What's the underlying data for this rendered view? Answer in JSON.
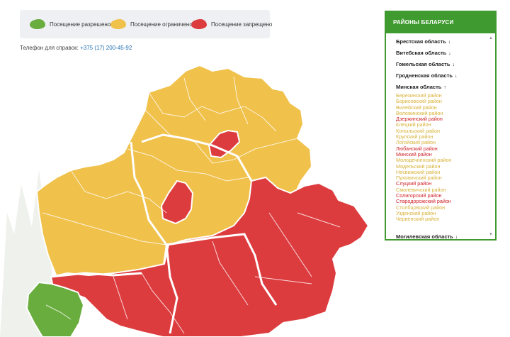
{
  "colors": {
    "allowed": "#6aad3f",
    "restricted": "#f0c14b",
    "forbidden": "#dd3c3f",
    "panel_green": "#3f9a2f"
  },
  "legend": {
    "allowed": "Посещение разрешено",
    "restricted": "Посещение ограничено",
    "forbidden": "Посещение запрещено"
  },
  "phone": {
    "label": "Телефон для справок:",
    "number": "+375 (17) 200-45-92"
  },
  "panel": {
    "title": "РАЙОНЫ БЕЛАРУСИ",
    "regions": [
      {
        "name": "Брестская область",
        "arrow": "↓"
      },
      {
        "name": "Витебская область",
        "arrow": "↓"
      },
      {
        "name": "Гомельская область",
        "arrow": "↓"
      },
      {
        "name": "Гродненская область",
        "arrow": "↓"
      },
      {
        "name": "Минская область",
        "arrow": "↑"
      },
      {
        "name": "Могилевская область",
        "arrow": "↓"
      }
    ],
    "minsk_districts": [
      {
        "name": "Березинский район",
        "status": "restricted"
      },
      {
        "name": "Борисовский район",
        "status": "restricted"
      },
      {
        "name": "Вилейский район",
        "status": "restricted"
      },
      {
        "name": "Воложинский район",
        "status": "restricted"
      },
      {
        "name": "Дзержинский район",
        "status": "forbidden"
      },
      {
        "name": "Клецкий район",
        "status": "restricted"
      },
      {
        "name": "Копыльский район",
        "status": "restricted"
      },
      {
        "name": "Крупский район",
        "status": "restricted"
      },
      {
        "name": "Логойский район",
        "status": "restricted"
      },
      {
        "name": "Любанский район",
        "status": "forbidden"
      },
      {
        "name": "Минский район",
        "status": "forbidden"
      },
      {
        "name": "Молодечненский район",
        "status": "restricted"
      },
      {
        "name": "Мядельский район",
        "status": "restricted"
      },
      {
        "name": "Несвижский район",
        "status": "restricted"
      },
      {
        "name": "Пуховичский район",
        "status": "restricted"
      },
      {
        "name": "Слуцкий район",
        "status": "forbidden"
      },
      {
        "name": "Смолевичский район",
        "status": "restricted"
      },
      {
        "name": "Солигорский район",
        "status": "forbidden"
      },
      {
        "name": "Стародорожский район",
        "status": "forbidden"
      },
      {
        "name": "Столбцовский район",
        "status": "restricted"
      },
      {
        "name": "Узденский район",
        "status": "restricted"
      },
      {
        "name": "Червенский район",
        "status": "restricted"
      }
    ]
  }
}
